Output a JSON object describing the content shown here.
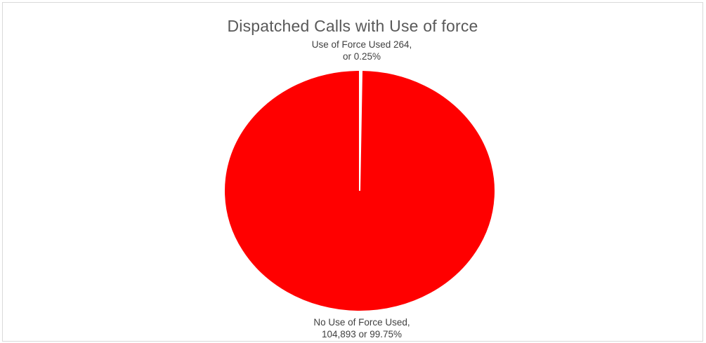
{
  "chart_data": {
    "type": "pie",
    "title": "Dispatched Calls with Use of force",
    "slices": [
      {
        "name": "Use of Force Used",
        "value": 264,
        "percent": 0.25,
        "label_line1": "Use of Force Used 264,",
        "label_line2": "or 0.25%",
        "color": "#ffffff"
      },
      {
        "name": "No Use of Force Used",
        "value": 104893,
        "percent": 99.75,
        "label_line1": "No Use of Force Used,",
        "label_line2": "104,893  or 99.75%",
        "color": "#ff0000"
      }
    ],
    "legend": "none"
  }
}
